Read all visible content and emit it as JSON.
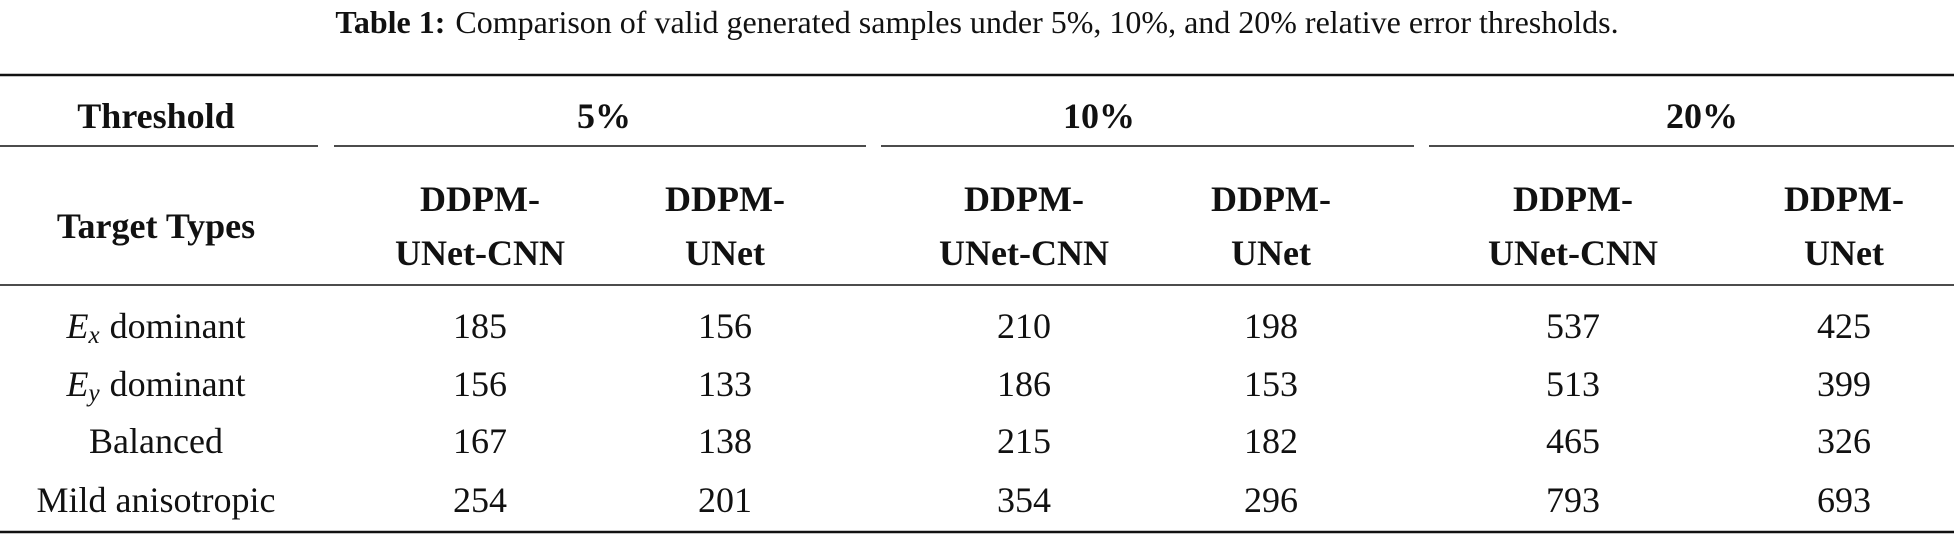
{
  "caption": {
    "label": "Table 1:",
    "text": "Comparison of valid generated samples under 5%, 10%, and 20% relative error thresholds."
  },
  "table": {
    "header": {
      "threshold": "Threshold",
      "target_types": "Target Types"
    },
    "groups": [
      {
        "threshold": "5%",
        "models": [
          [
            "DDPM-",
            "UNet-CNN"
          ],
          [
            "DDPM-",
            "UNet"
          ]
        ]
      },
      {
        "threshold": "10%",
        "models": [
          [
            "DDPM-",
            "UNet-CNN"
          ],
          [
            "DDPM-",
            "UNet"
          ]
        ]
      },
      {
        "threshold": "20%",
        "models": [
          [
            "DDPM-",
            "UNet-CNN"
          ],
          [
            "DDPM-",
            "UNet"
          ]
        ]
      }
    ],
    "rows": [
      {
        "label": {
          "symbol": "E",
          "sub": "x",
          "rest": "dominant"
        },
        "values": [
          185,
          156,
          210,
          198,
          537,
          425
        ]
      },
      {
        "label": {
          "symbol": "E",
          "sub": "y",
          "rest": "dominant"
        },
        "values": [
          156,
          133,
          186,
          153,
          513,
          399
        ]
      },
      {
        "label": "Balanced",
        "values": [
          167,
          138,
          215,
          182,
          465,
          326
        ]
      },
      {
        "label": "Mild anisotropic",
        "values": [
          254,
          201,
          354,
          296,
          793,
          693
        ]
      }
    ]
  }
}
